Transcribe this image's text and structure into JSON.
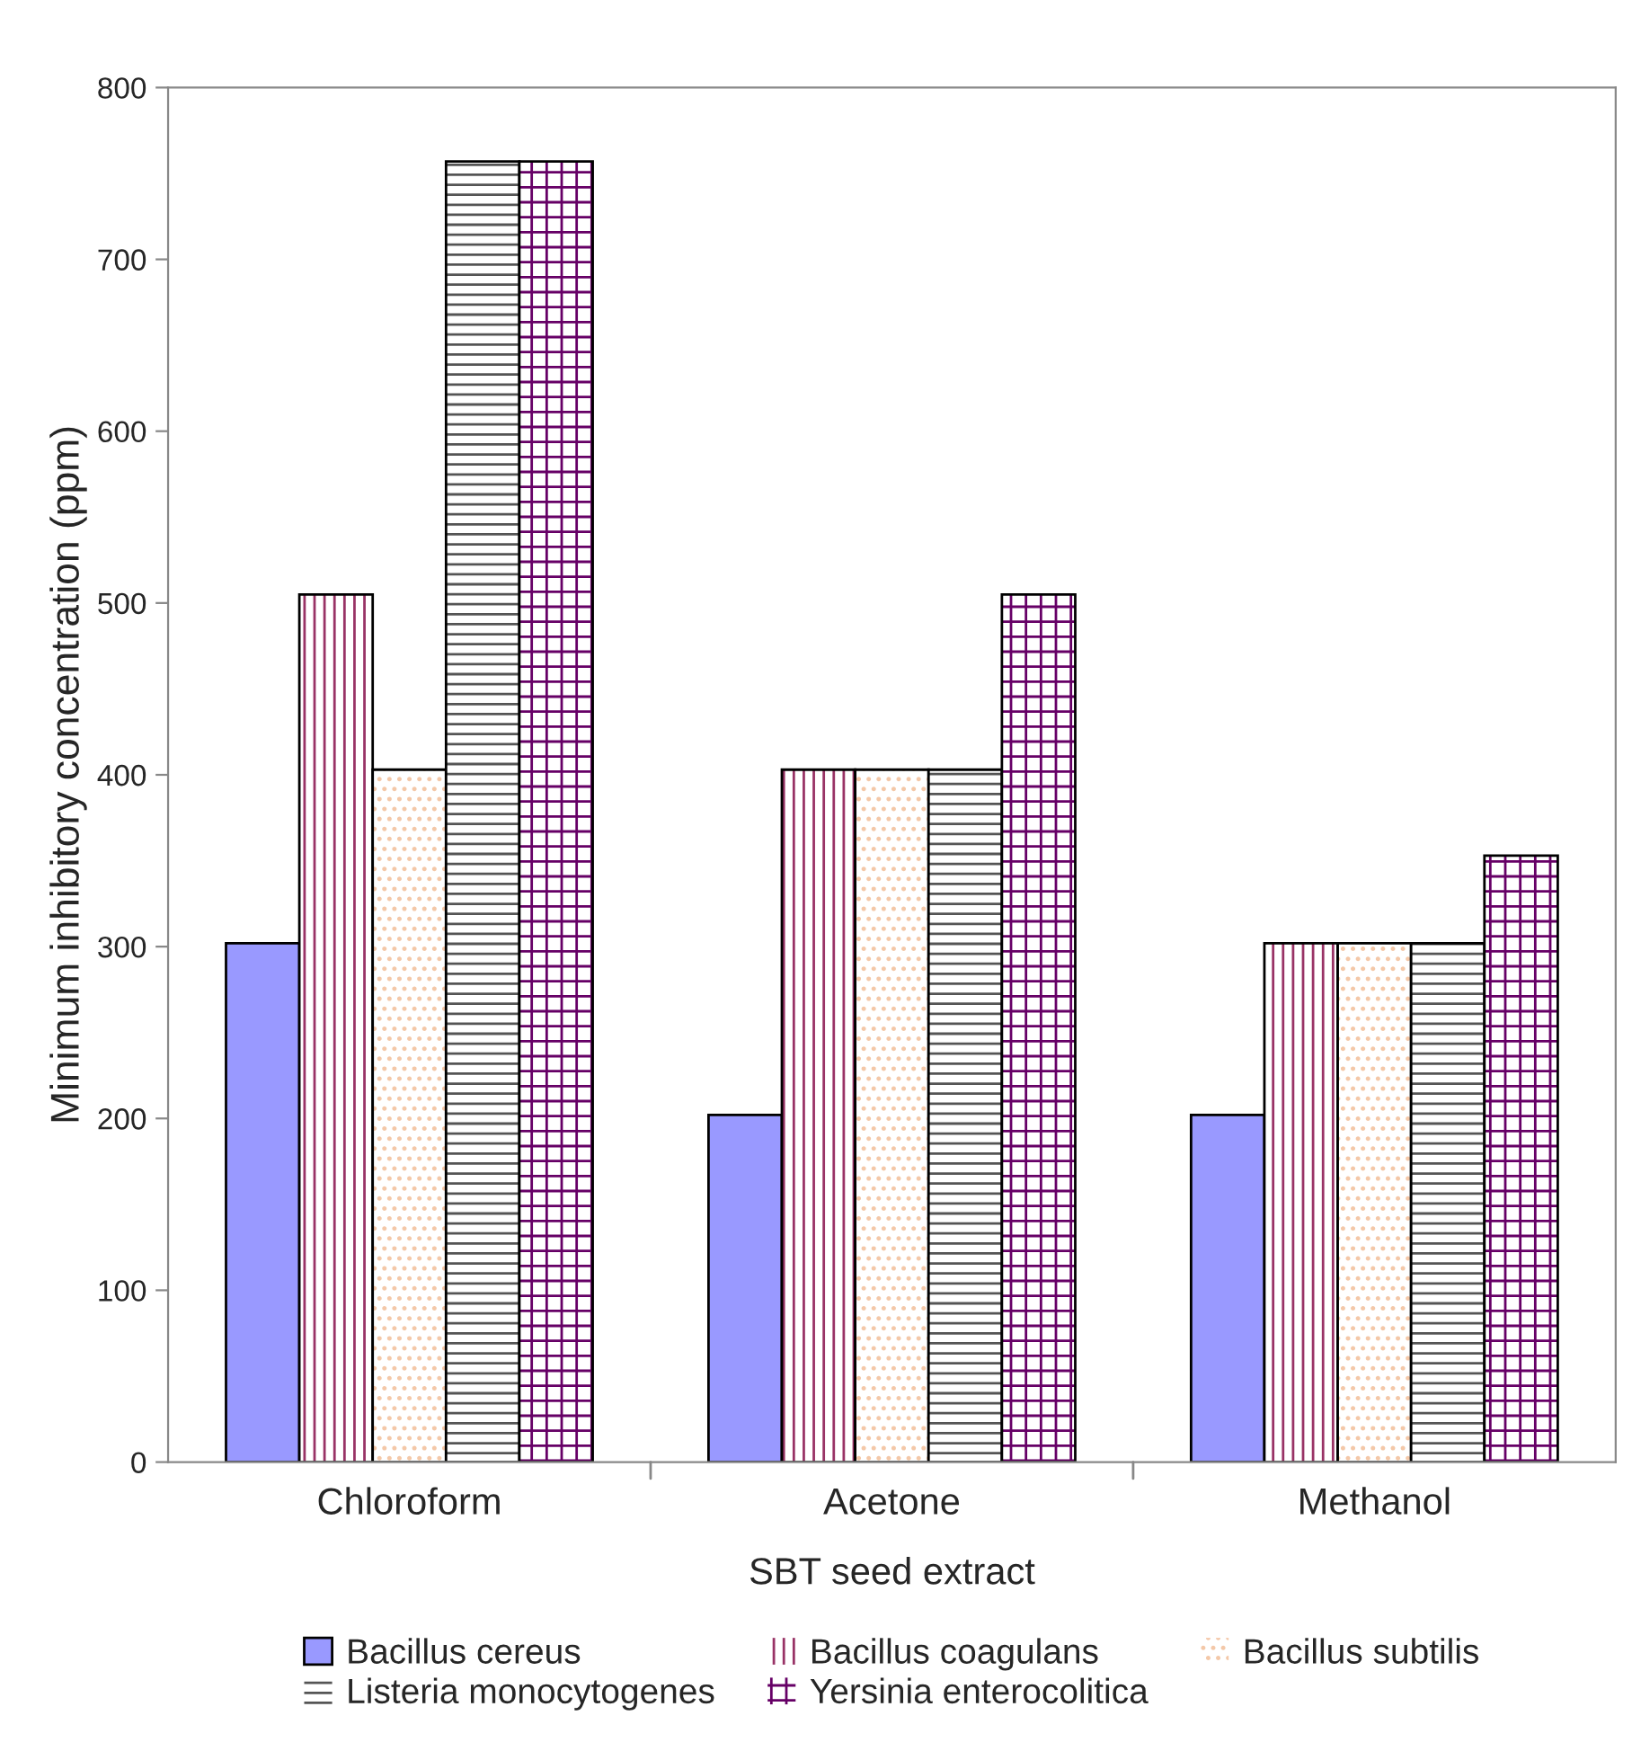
{
  "chart_data": {
    "type": "bar",
    "xlabel": "SBT seed extract",
    "ylabel": "Minimum inhibitory concentration (ppm)",
    "categories": [
      "Chloroform",
      "Acetone",
      "Methanol"
    ],
    "series": [
      {
        "name": "Bacillus cereus",
        "color": "#9999ff",
        "values": [
          302,
          202,
          202
        ]
      },
      {
        "name": "Bacillus coagulans",
        "color": "#993366",
        "values": [
          505,
          403,
          302
        ]
      },
      {
        "name": "Bacillus subtilis",
        "color": "#f4c8a8",
        "values": [
          403,
          403,
          302
        ]
      },
      {
        "name": "Listeria monocytogenes",
        "color": "#555555",
        "values": [
          757,
          403,
          302
        ]
      },
      {
        "name": "Yersinia enterocolitica",
        "color": "#660066",
        "values": [
          757,
          505,
          353
        ]
      }
    ],
    "ylim": [
      0,
      800
    ],
    "yticks": [
      0,
      100,
      200,
      300,
      400,
      500,
      600,
      700,
      800
    ],
    "grid": false,
    "legend": "bottom"
  }
}
